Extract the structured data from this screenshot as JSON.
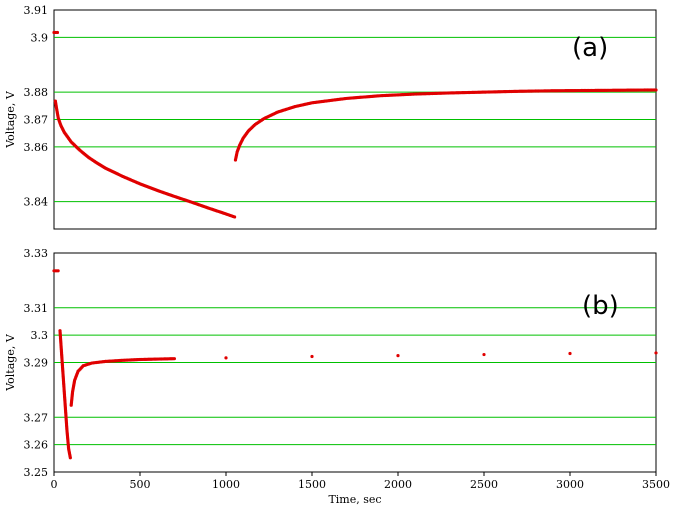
{
  "chart_data": [
    {
      "type": "scatter",
      "panel_label": "(a)",
      "ylabel": "Voltage, V",
      "xlim": [
        0,
        3500
      ],
      "ylim": [
        3.83,
        3.91
      ],
      "y_ticks": [
        3.91,
        3.9,
        3.88,
        3.87,
        3.86,
        3.84
      ],
      "y_tick_labels": [
        "3.91",
        "3.9",
        "3.88",
        "3.87",
        "3.86",
        "3.84"
      ],
      "grid": true,
      "series": [
        {
          "color": "#e00000",
          "points": [
            [
              0,
              3.9018
            ],
            [
              10,
              3.9018
            ],
            [
              20,
              3.9018
            ],
            [
              8,
              3.8767
            ],
            [
              15,
              3.874
            ],
            [
              25,
              3.8705
            ],
            [
              40,
              3.8678
            ],
            [
              60,
              3.8653
            ],
            [
              100,
              3.8618
            ],
            [
              150,
              3.8588
            ],
            [
              200,
              3.8562
            ],
            [
              250,
              3.8541
            ],
            [
              300,
              3.8522
            ],
            [
              400,
              3.8492
            ],
            [
              500,
              3.8465
            ],
            [
              600,
              3.8441
            ],
            [
              700,
              3.8419
            ],
            [
              800,
              3.8398
            ],
            [
              900,
              3.8376
            ],
            [
              1000,
              3.8355
            ],
            [
              1050,
              3.8344
            ],
            [
              1055,
              3.8552
            ],
            [
              1065,
              3.8582
            ],
            [
              1080,
              3.8607
            ],
            [
              1100,
              3.8632
            ],
            [
              1130,
              3.8658
            ],
            [
              1170,
              3.8682
            ],
            [
              1220,
              3.8703
            ],
            [
              1300,
              3.8727
            ],
            [
              1400,
              3.8747
            ],
            [
              1500,
              3.8761
            ],
            [
              1700,
              3.8777
            ],
            [
              1900,
              3.8787
            ],
            [
              2100,
              3.8793
            ],
            [
              2300,
              3.8797
            ],
            [
              2500,
              3.88
            ],
            [
              2700,
              3.8803
            ],
            [
              2900,
              3.8805
            ],
            [
              3100,
              3.8806
            ],
            [
              3300,
              3.8807
            ],
            [
              3500,
              3.8808
            ]
          ]
        }
      ]
    },
    {
      "type": "scatter",
      "panel_label": "(b)",
      "ylabel": "Voltage, V",
      "xlabel": "Time, sec",
      "xlim": [
        0,
        3500
      ],
      "ylim": [
        3.25,
        3.33
      ],
      "y_ticks": [
        3.33,
        3.31,
        3.3,
        3.29,
        3.27,
        3.26,
        3.25
      ],
      "y_tick_labels": [
        "3.33",
        "3.31",
        "3.3",
        "3.29",
        "3.27",
        "3.26",
        "3.25"
      ],
      "x_ticks": [
        0,
        500,
        1000,
        1500,
        2000,
        2500,
        3000,
        3500
      ],
      "x_tick_labels": [
        "0",
        "500",
        "1000",
        "1500",
        "2000",
        "2500",
        "3000",
        "3500"
      ],
      "grid": true,
      "series": [
        {
          "color": "#e00000",
          "points": [
            [
              0,
              3.3235
            ],
            [
              8,
              3.3235
            ],
            [
              16,
              3.3235
            ],
            [
              24,
              3.3235
            ],
            [
              35,
              3.3016
            ],
            [
              45,
              3.2925
            ],
            [
              55,
              3.2835
            ],
            [
              65,
              3.2745
            ],
            [
              75,
              3.2655
            ],
            [
              85,
              3.2585
            ],
            [
              95,
              3.2552
            ],
            [
              100,
              3.2744
            ],
            [
              108,
              3.2793
            ],
            [
              120,
              3.2835
            ],
            [
              140,
              3.2868
            ],
            [
              170,
              3.2888
            ],
            [
              220,
              3.2898
            ],
            [
              300,
              3.2904
            ],
            [
              400,
              3.2908
            ],
            [
              500,
              3.2911
            ],
            [
              700,
              3.2914
            ],
            [
              1000,
              3.2917
            ],
            [
              1500,
              3.2922
            ],
            [
              2000,
              3.2925
            ],
            [
              2500,
              3.2929
            ],
            [
              3000,
              3.2933
            ],
            [
              3500,
              3.2935
            ]
          ]
        }
      ]
    }
  ]
}
